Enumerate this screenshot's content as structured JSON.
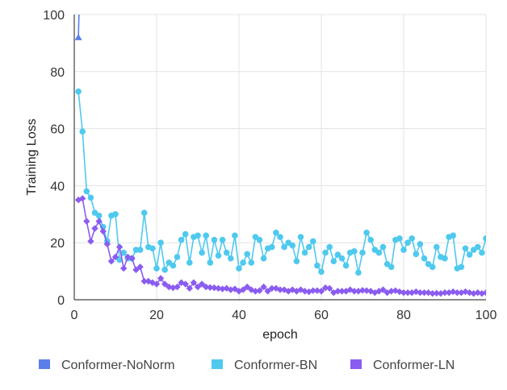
{
  "chart_data": {
    "type": "line",
    "xlabel": "epoch",
    "ylabel": "Training Loss",
    "xlim": [
      0,
      100
    ],
    "ylim": [
      0,
      100
    ],
    "xticks": [
      0,
      20,
      40,
      60,
      80,
      100
    ],
    "yticks": [
      0,
      20,
      40,
      60,
      80,
      100
    ],
    "grid": true,
    "legend_position": "bottom",
    "series": [
      {
        "name": "Conformer-NoNorm",
        "color": "#5B7FE8",
        "marker": "triangle",
        "x": [
          1,
          2
        ],
        "y": [
          92,
          150
        ]
      },
      {
        "name": "Conformer-BN",
        "color": "#4FC9EE",
        "marker": "circle",
        "x": [
          1,
          2,
          3,
          4,
          5,
          6,
          7,
          8,
          9,
          10,
          11,
          12,
          13,
          14,
          15,
          16,
          17,
          18,
          19,
          20,
          21,
          22,
          23,
          24,
          25,
          26,
          27,
          28,
          29,
          30,
          31,
          32,
          33,
          34,
          35,
          36,
          37,
          38,
          39,
          40,
          41,
          42,
          43,
          44,
          45,
          46,
          47,
          48,
          49,
          50,
          51,
          52,
          53,
          54,
          55,
          56,
          57,
          58,
          59,
          60,
          61,
          62,
          63,
          64,
          65,
          66,
          67,
          68,
          69,
          70,
          71,
          72,
          73,
          74,
          75,
          76,
          77,
          78,
          79,
          80,
          81,
          82,
          83,
          84,
          85,
          86,
          87,
          88,
          89,
          90,
          91,
          92,
          93,
          94,
          95,
          96,
          97,
          98,
          99,
          100
        ],
        "y": [
          73,
          59,
          38,
          35.8,
          30.5,
          29.5,
          25.5,
          20.5,
          29.5,
          30,
          14,
          16.5,
          14.5,
          14.5,
          17.5,
          17.5,
          30.5,
          18.5,
          18,
          11,
          20,
          10.5,
          13,
          12,
          15,
          21,
          23,
          13,
          22,
          22.5,
          16.5,
          22.5,
          13,
          21,
          15.5,
          21,
          16.5,
          14.5,
          22.5,
          11,
          13,
          16,
          13,
          22,
          21,
          14.5,
          18,
          18.5,
          23.5,
          22,
          18.5,
          20,
          19,
          13.5,
          22,
          16.5,
          18.5,
          20.5,
          12,
          9.8,
          16.5,
          18.5,
          13.5,
          15.8,
          14.5,
          12,
          16.5,
          17,
          9.5,
          16.5,
          23.5,
          21,
          17.5,
          16.5,
          18.5,
          12.5,
          11.5,
          21,
          21.5,
          17.5,
          20,
          21.5,
          16,
          19.5,
          14.5,
          12.5,
          11.5,
          18.5,
          15,
          14.5,
          22,
          22.5,
          11,
          11.5,
          18,
          15.8,
          17.5,
          18.5,
          16.5,
          21.5
        ]
      },
      {
        "name": "Conformer-LN",
        "color": "#8B5CF0",
        "marker": "diamond",
        "x": [
          1,
          2,
          3,
          4,
          5,
          6,
          7,
          8,
          9,
          10,
          11,
          12,
          13,
          14,
          15,
          16,
          17,
          18,
          19,
          20,
          21,
          22,
          23,
          24,
          25,
          26,
          27,
          28,
          29,
          30,
          31,
          32,
          33,
          34,
          35,
          36,
          37,
          38,
          39,
          40,
          41,
          42,
          43,
          44,
          45,
          46,
          47,
          48,
          49,
          50,
          51,
          52,
          53,
          54,
          55,
          56,
          57,
          58,
          59,
          60,
          61,
          62,
          63,
          64,
          65,
          66,
          67,
          68,
          69,
          70,
          71,
          72,
          73,
          74,
          75,
          76,
          77,
          78,
          79,
          80,
          81,
          82,
          83,
          84,
          85,
          86,
          87,
          88,
          89,
          90,
          91,
          92,
          93,
          94,
          95,
          96,
          97,
          98,
          99,
          100
        ],
        "y": [
          35,
          35.5,
          27.5,
          20.5,
          25,
          27.5,
          24,
          19.5,
          13.5,
          15,
          18.5,
          11,
          15,
          14.5,
          10.5,
          11.5,
          6.5,
          6.5,
          6,
          5.5,
          7.5,
          5.5,
          4.5,
          4.2,
          4.5,
          6,
          5.5,
          4,
          6,
          4.5,
          5.5,
          4.5,
          4.3,
          4.2,
          4,
          3.8,
          4,
          3.5,
          3.8,
          3,
          3.5,
          4.5,
          3.5,
          3,
          3.2,
          4.5,
          3,
          4,
          4,
          3.5,
          3.5,
          3,
          3.5,
          3,
          3.5,
          3,
          2.8,
          3.2,
          3.2,
          3,
          4.2,
          4,
          2.5,
          3,
          3,
          3,
          3.5,
          3,
          3,
          3.3,
          3.2,
          3,
          2.5,
          3,
          3.5,
          2.5,
          3,
          3.2,
          2.8,
          2.5,
          2.5,
          2.5,
          2.8,
          2.5,
          2.5,
          2.5,
          2.2,
          2.3,
          2.2,
          2.5,
          2.5,
          2.8,
          2.5,
          2.5,
          2.8,
          2.5,
          2.2,
          2.5,
          2.2,
          2.5
        ]
      }
    ]
  }
}
